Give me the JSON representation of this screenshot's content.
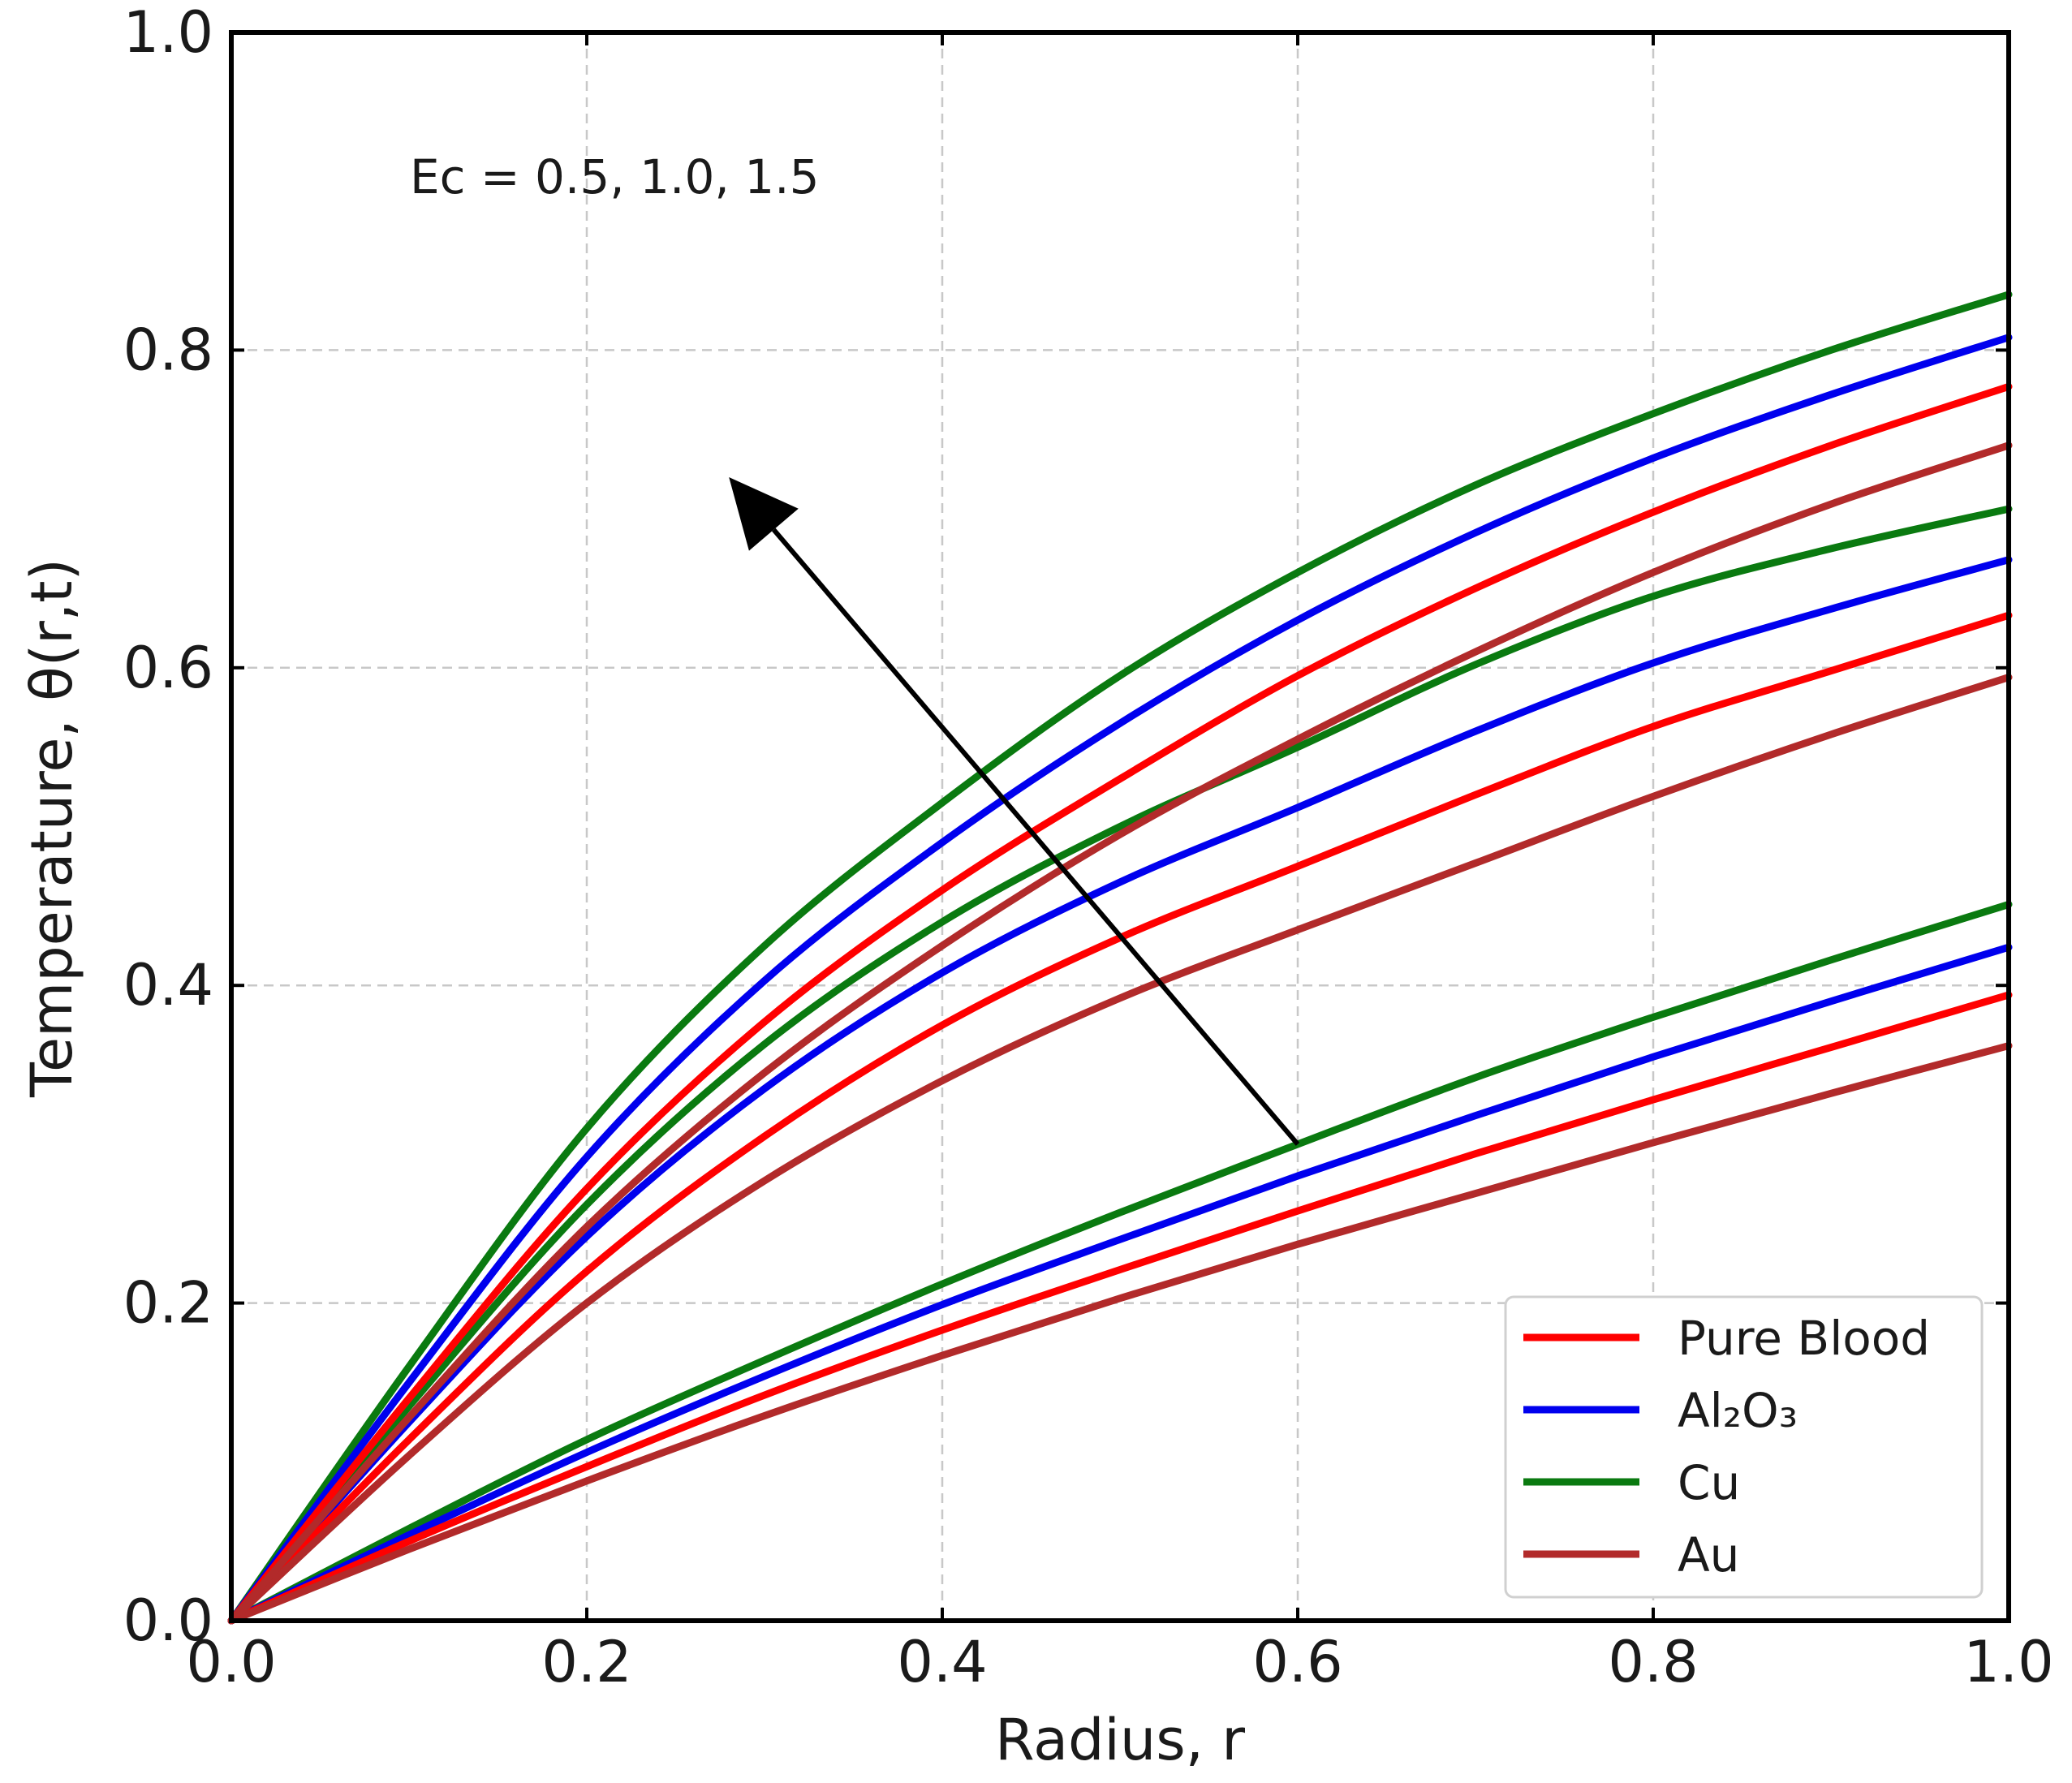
{
  "chart_data": {
    "type": "line",
    "title": "",
    "xlabel": "Radius, r",
    "ylabel": "Temperature, θ(r,t)",
    "xlim": [
      0.0,
      1.0
    ],
    "ylim": [
      0.0,
      1.0
    ],
    "x_ticks": [
      "0.0",
      "0.2",
      "0.4",
      "0.6",
      "0.8",
      "1.0"
    ],
    "y_ticks": [
      "0.0",
      "0.2",
      "0.4",
      "0.6",
      "0.8",
      "1.0"
    ],
    "grid": true,
    "legend_position": "bottom-right",
    "annotation": "Ec = 0.5, 1.0, 1.5",
    "arrow": {
      "from": [
        0.6,
        0.3
      ],
      "to": [
        0.28,
        0.72
      ],
      "meaning": "increasing Ec"
    },
    "ec_values": [
      0.5,
      1.0,
      1.5
    ],
    "x": [
      0.0,
      0.1,
      0.2,
      0.3,
      0.4,
      0.5,
      0.6,
      0.7,
      0.8,
      0.9,
      1.0
    ],
    "series": [
      {
        "name": "Cu",
        "legend": "Cu",
        "color": "#0a7a10",
        "ec": 0.5,
        "values": [
          0.0,
          0.058,
          0.114,
          0.164,
          0.212,
          0.257,
          0.3,
          0.342,
          0.38,
          0.416,
          0.451
        ]
      },
      {
        "name": "Al₂O₃",
        "legend": "Al₂O₃",
        "color": "#0000ee",
        "ec": 0.5,
        "values": [
          0.0,
          0.054,
          0.106,
          0.154,
          0.199,
          0.24,
          0.28,
          0.318,
          0.355,
          0.39,
          0.424
        ]
      },
      {
        "name": "Pure Blood",
        "legend": "Pure Blood",
        "color": "#ff0000",
        "ec": 0.5,
        "values": [
          0.0,
          0.05,
          0.097,
          0.142,
          0.183,
          0.221,
          0.258,
          0.294,
          0.328,
          0.361,
          0.394
        ]
      },
      {
        "name": "Au",
        "legend": "Au",
        "color": "#b22a2a",
        "ec": 0.5,
        "values": [
          0.0,
          0.045,
          0.088,
          0.129,
          0.167,
          0.203,
          0.237,
          0.269,
          0.301,
          0.332,
          0.362
        ]
      },
      {
        "name": "Cu",
        "legend": "",
        "color": "#0a7a10",
        "ec": 1.0,
        "values": [
          0.0,
          0.135,
          0.262,
          0.363,
          0.44,
          0.5,
          0.55,
          0.602,
          0.645,
          0.675,
          0.7
        ]
      },
      {
        "name": "Al₂O₃",
        "legend": "",
        "color": "#0000ee",
        "ec": 1.0,
        "values": [
          0.0,
          0.125,
          0.242,
          0.335,
          0.408,
          0.465,
          0.512,
          0.56,
          0.603,
          0.637,
          0.668
        ]
      },
      {
        "name": "Pure Blood",
        "legend": "",
        "color": "#ff0000",
        "ec": 1.0,
        "values": [
          0.0,
          0.114,
          0.22,
          0.305,
          0.375,
          0.43,
          0.475,
          0.52,
          0.563,
          0.598,
          0.633
        ]
      },
      {
        "name": "Au",
        "legend": "",
        "color": "#b22a2a",
        "ec": 1.0,
        "values": [
          0.0,
          0.104,
          0.2,
          0.277,
          0.34,
          0.392,
          0.435,
          0.477,
          0.519,
          0.558,
          0.594
        ]
      },
      {
        "name": "Cu",
        "legend": "",
        "color": "#0a7a10",
        "ec": 1.5,
        "values": [
          0.0,
          0.16,
          0.31,
          0.425,
          0.515,
          0.595,
          0.66,
          0.715,
          0.76,
          0.8,
          0.835
        ]
      },
      {
        "name": "Al₂O₃",
        "legend": "",
        "color": "#0000ee",
        "ec": 1.5,
        "values": [
          0.0,
          0.15,
          0.292,
          0.403,
          0.49,
          0.565,
          0.63,
          0.685,
          0.732,
          0.772,
          0.808
        ]
      },
      {
        "name": "Pure Blood",
        "legend": "",
        "color": "#ff0000",
        "ec": 1.5,
        "values": [
          0.0,
          0.14,
          0.272,
          0.377,
          0.46,
          0.53,
          0.595,
          0.65,
          0.698,
          0.74,
          0.777
        ]
      },
      {
        "name": "Au",
        "legend": "",
        "color": "#b22a2a",
        "ec": 1.5,
        "values": [
          0.0,
          0.128,
          0.248,
          0.345,
          0.425,
          0.495,
          0.555,
          0.61,
          0.66,
          0.703,
          0.74
        ]
      }
    ],
    "legend": [
      {
        "label": "Pure Blood",
        "color": "#ff0000"
      },
      {
        "label": "Al₂O₃",
        "color": "#0000ee"
      },
      {
        "label": "Cu",
        "color": "#0a7a10"
      },
      {
        "label": "Au",
        "color": "#b22a2a"
      }
    ]
  }
}
